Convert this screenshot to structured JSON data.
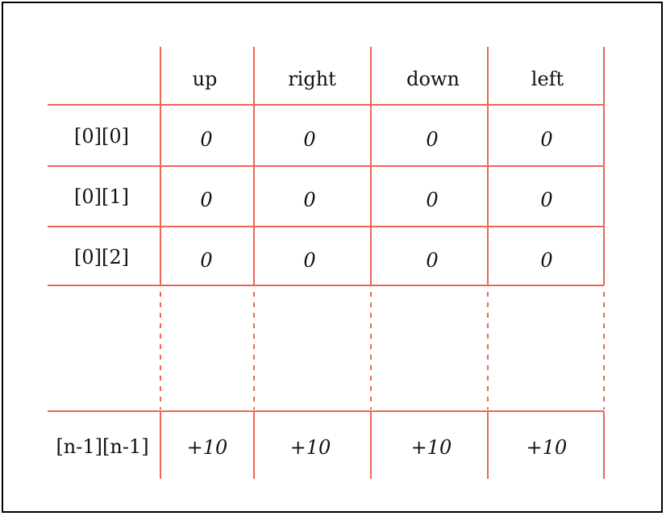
{
  "table": {
    "columns": [
      "up",
      "right",
      "down",
      "left"
    ],
    "rows": [
      {
        "label": "[0][0]",
        "values": [
          "0",
          "0",
          "0",
          "0"
        ]
      },
      {
        "label": "[0][1]",
        "values": [
          "0",
          "0",
          "0",
          "0"
        ]
      },
      {
        "label": "[0][2]",
        "values": [
          "0",
          "0",
          "0",
          "0"
        ]
      },
      {
        "label": "[n-1][n-1]",
        "values": [
          "+10",
          "+10",
          "+10",
          "+10"
        ]
      }
    ],
    "line_color": "#ee6655"
  }
}
